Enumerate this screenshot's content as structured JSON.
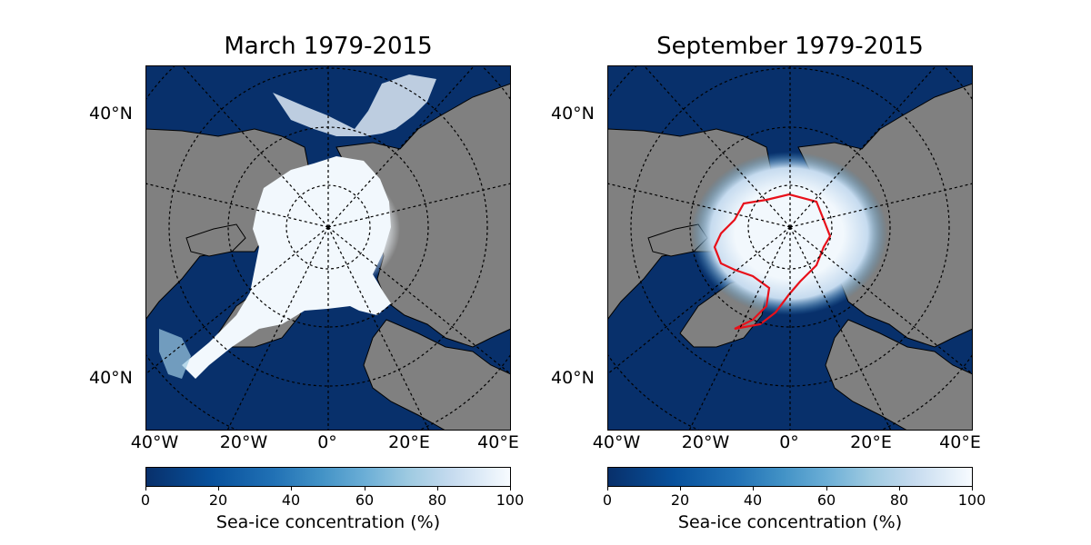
{
  "panels": [
    {
      "title": "March 1979-2015",
      "lat_label_top": "40°N",
      "lat_label_bottom": "40°N",
      "lon_labels": [
        "40°W",
        "20°W",
        "0°",
        "20°E",
        "40°E"
      ],
      "colorbar": {
        "ticks": [
          "0",
          "20",
          "40",
          "60",
          "80",
          "100"
        ],
        "label": "Sea-ice concentration (%)"
      },
      "show_contour": false
    },
    {
      "title": "September 1979-2015",
      "lat_label_top": "40°N",
      "lat_label_bottom": "40°N",
      "lon_labels": [
        "40°W",
        "20°W",
        "0°",
        "20°E",
        "40°E"
      ],
      "colorbar": {
        "ticks": [
          "0",
          "20",
          "40",
          "60",
          "80",
          "100"
        ],
        "label": "Sea-ice concentration (%)"
      },
      "show_contour": true
    }
  ],
  "colors": {
    "ocean": "#08306b",
    "land": "#808080",
    "ice": "#f2f8fd",
    "contour": "#e8101a"
  },
  "colormap": "Blues_r"
}
